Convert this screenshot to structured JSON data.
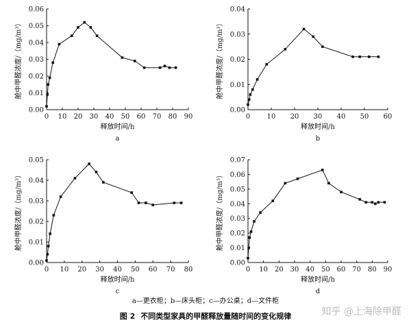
{
  "chart_data": [
    {
      "type": "line",
      "panel_label": "a",
      "xlabel": "释放时间/h",
      "ylabel": "舱中甲醛浓度/（mg/m³）",
      "xlim": [
        0,
        90
      ],
      "ylim": [
        0,
        0.06
      ],
      "x_ticks": [
        "0",
        "10",
        "20",
        "30",
        "40",
        "50",
        "60",
        "70",
        "80",
        "90"
      ],
      "y_ticks": [
        "0.00",
        "0.01",
        "0.02",
        "0.03",
        "0.04",
        "0.05",
        "0.06"
      ],
      "x": [
        0,
        0.5,
        1,
        2,
        4,
        8,
        16,
        20,
        24,
        28,
        32,
        48,
        56,
        62,
        72,
        75,
        78,
        82
      ],
      "y": [
        0.002,
        0.009,
        0.015,
        0.019,
        0.028,
        0.039,
        0.044,
        0.049,
        0.052,
        0.049,
        0.044,
        0.031,
        0.029,
        0.025,
        0.025,
        0.026,
        0.025,
        0.025
      ]
    },
    {
      "type": "line",
      "panel_label": "b",
      "xlabel": "释放时间/h",
      "ylabel": "舱中甲醛浓度/（mg/m³）",
      "xlim": [
        0,
        60
      ],
      "ylim": [
        0,
        0.04
      ],
      "x_ticks": [
        "0",
        "10",
        "20",
        "30",
        "40",
        "50",
        "60"
      ],
      "y_ticks": [
        "0.00",
        "0.01",
        "0.02",
        "0.03",
        "0.04"
      ],
      "x": [
        0,
        0.5,
        1,
        2,
        4,
        8,
        16,
        24,
        28,
        32,
        45,
        48,
        52,
        56
      ],
      "y": [
        0.002,
        0.004,
        0.006,
        0.008,
        0.012,
        0.018,
        0.024,
        0.032,
        0.029,
        0.025,
        0.021,
        0.021,
        0.021,
        0.021
      ]
    },
    {
      "type": "line",
      "panel_label": "c",
      "xlabel": "释放时间/h",
      "ylabel": "舱中甲醛浓度/（mg/m³）",
      "xlim": [
        0,
        80
      ],
      "ylim": [
        0,
        0.05
      ],
      "x_ticks": [
        "0",
        "10",
        "20",
        "30",
        "40",
        "50",
        "60",
        "70",
        "80"
      ],
      "y_ticks": [
        "0.00",
        "0.01",
        "0.02",
        "0.03",
        "0.04",
        "0.05"
      ],
      "x": [
        0,
        0.5,
        1,
        2,
        4,
        8,
        16,
        24,
        28,
        32,
        48,
        52,
        56,
        60,
        72,
        76
      ],
      "y": [
        0.001,
        0.004,
        0.008,
        0.014,
        0.023,
        0.032,
        0.041,
        0.048,
        0.044,
        0.039,
        0.034,
        0.029,
        0.029,
        0.028,
        0.029,
        0.029
      ]
    },
    {
      "type": "line",
      "panel_label": "d",
      "xlabel": "释放时间/h",
      "ylabel": "舱中甲醛浓度/（mg/m³）",
      "xlim": [
        0,
        90
      ],
      "ylim": [
        0,
        0.07
      ],
      "x_ticks": [
        "0",
        "10",
        "20",
        "30",
        "40",
        "50",
        "60",
        "70",
        "80",
        "90"
      ],
      "y_ticks": [
        "0.00",
        "0.01",
        "0.02",
        "0.03",
        "0.04",
        "0.05",
        "0.06",
        "0.07"
      ],
      "x": [
        0,
        0.5,
        1,
        2,
        4,
        8,
        16,
        24,
        32,
        48,
        52,
        60,
        72,
        76,
        80,
        82,
        84,
        88
      ],
      "y": [
        0.003,
        0.01,
        0.017,
        0.021,
        0.028,
        0.034,
        0.042,
        0.054,
        0.057,
        0.063,
        0.054,
        0.048,
        0.043,
        0.041,
        0.041,
        0.04,
        0.041,
        0.041
      ]
    }
  ],
  "legend_text": "a—更衣柜；b—床头柜；c—办公桌；d—文件柜",
  "caption": {
    "number": "图 2",
    "text": "不同类型家具的甲醛释放量随时间的变化规律"
  },
  "watermark": "知乎 @上海除甲醛"
}
